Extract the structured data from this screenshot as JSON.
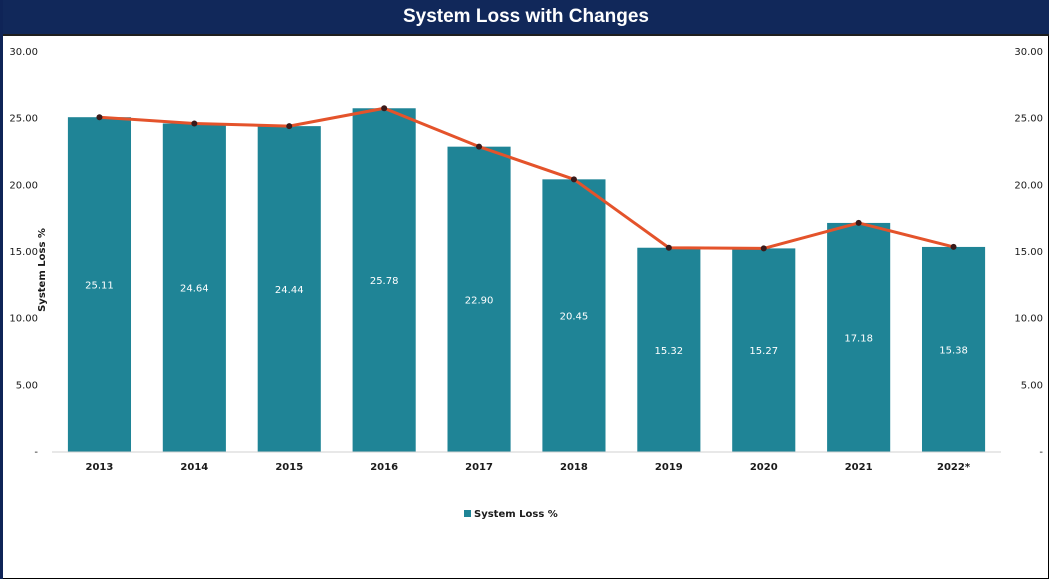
{
  "title": "System Loss with Changes",
  "chart_data": {
    "type": "bar",
    "title": "System Loss with Changes",
    "categories": [
      "2013",
      "2014",
      "2015",
      "2016",
      "2017",
      "2018",
      "2019",
      "2020",
      "2021",
      "2022*"
    ],
    "series": [
      {
        "name": "System Loss %",
        "type": "bar",
        "color": "#1f8496",
        "values": [
          25.11,
          24.64,
          24.44,
          25.78,
          22.9,
          20.45,
          15.32,
          15.27,
          17.18,
          15.38
        ]
      },
      {
        "type": "line",
        "color": "#e4532b",
        "marker_color": "#3a1a1a",
        "values": [
          25.11,
          24.64,
          24.44,
          25.78,
          22.9,
          20.45,
          15.32,
          15.27,
          17.18,
          15.38
        ]
      }
    ],
    "data_labels": [
      "25.11",
      "24.64",
      "24.44",
      "25.78",
      "22.90",
      "20.45",
      "15.32",
      "15.27",
      "17.18",
      "15.38"
    ],
    "ylabel": "System Loss %",
    "ylim": [
      0,
      30
    ],
    "yticks": [
      "-",
      "5.00",
      "10.00",
      "15.00",
      "20.00",
      "25.00",
      "30.00"
    ],
    "ytick_values": [
      0,
      5,
      10,
      15,
      20,
      25,
      30
    ],
    "secondary_axis": true,
    "grid": false,
    "legend": {
      "position": "bottom",
      "entries": [
        "System Loss %"
      ]
    }
  }
}
